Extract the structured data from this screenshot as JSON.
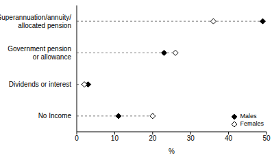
{
  "chart_data": {
    "type": "dot",
    "orientation": "horizontal",
    "categories": [
      "Superannuation/annuity/\nallocated pension",
      "Government pension\nor allowance",
      "Dividends or interest",
      "No Income"
    ],
    "series": [
      {
        "name": "Males",
        "color": "#000000",
        "marker": "diamond",
        "values": [
          49,
          23,
          3,
          11
        ]
      },
      {
        "name": "Females",
        "color": "#000000",
        "marker": "open_diamond",
        "values": [
          36,
          26,
          2,
          20
        ]
      }
    ],
    "x_label": "%",
    "xlim": [
      0,
      50
    ],
    "xticks": [
      0,
      10,
      20,
      30,
      40,
      50
    ],
    "legend": "lower right",
    "grid": false
  }
}
